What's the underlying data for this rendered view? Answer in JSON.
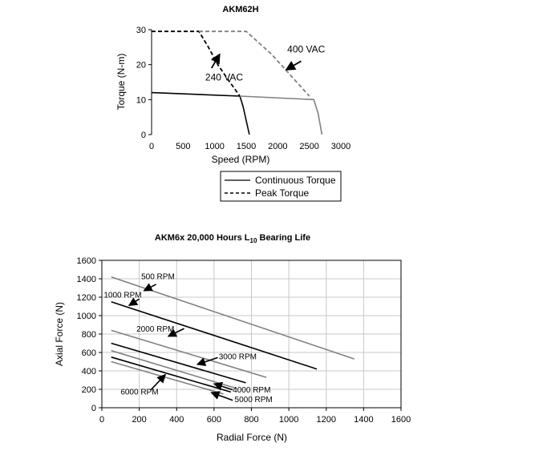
{
  "chart_data": [
    {
      "type": "line",
      "title": "AKM62H",
      "xlabel": "Speed (RPM)",
      "ylabel": "Torque (N-m)",
      "xlim": [
        0,
        3000
      ],
      "ylim": [
        0,
        30
      ],
      "xticks": [
        "0",
        "500",
        "1000",
        "1500",
        "2000",
        "2500",
        "3000"
      ],
      "yticks": [
        "0",
        "10",
        "20",
        "30"
      ],
      "grid": false,
      "legend_position": "below",
      "legend": [
        {
          "label": "Continuous Torque",
          "style": "solid"
        },
        {
          "label": "Peak Torque",
          "style": "dashed"
        }
      ],
      "series": [
        {
          "voltage": "240 VAC",
          "kind": "continuous",
          "color": "#000000",
          "dashed": false,
          "x": [
            0,
            1400,
            1450,
            1500,
            1550
          ],
          "y": [
            12,
            11,
            8,
            4,
            0
          ]
        },
        {
          "voltage": "240 VAC",
          "kind": "peak",
          "color": "#000000",
          "dashed": true,
          "x": [
            0,
            750,
            900,
            1050,
            1200,
            1320,
            1400
          ],
          "y": [
            29.5,
            29.5,
            25,
            20,
            16,
            13,
            11
          ]
        },
        {
          "voltage": "400 VAC",
          "kind": "continuous",
          "color": "#808080",
          "dashed": false,
          "x": [
            1400,
            2570,
            2640,
            2700
          ],
          "y": [
            11,
            10,
            6,
            0
          ]
        },
        {
          "voltage": "400 VAC",
          "kind": "peak",
          "color": "#808080",
          "dashed": true,
          "x": [
            750,
            1500,
            1900,
            2100,
            2300,
            2500
          ],
          "y": [
            29.5,
            29.5,
            23,
            19,
            15,
            11
          ]
        }
      ],
      "annotations": [
        {
          "text": "240 VAC",
          "x": 1150,
          "y": 15.5,
          "arrow_to": [
            1080,
            23
          ],
          "arrow_from": [
            950,
            19
          ]
        },
        {
          "text": "400 VAC",
          "x": 2450,
          "y": 23.5,
          "arrow_to": [
            2130,
            18.5
          ],
          "arrow_from": [
            2370,
            21
          ]
        }
      ]
    },
    {
      "type": "line",
      "title_main": "AKM6x 20,000 Hours L",
      "title_sub": "10",
      "title_end": " Bearing Life",
      "xlabel": "Radial Force (N)",
      "ylabel": "Axial Force (N)",
      "xlim": [
        0,
        1600
      ],
      "ylim": [
        0,
        1600
      ],
      "xticks": [
        "0",
        "200",
        "400",
        "600",
        "800",
        "1000",
        "1200",
        "1400",
        "1600"
      ],
      "yticks": [
        "0",
        "200",
        "400",
        "600",
        "800",
        "1000",
        "1200",
        "1400",
        "1600"
      ],
      "grid": true,
      "series": [
        {
          "name": "500 RPM",
          "color": "#808080",
          "x": [
            50,
            1350
          ],
          "y": [
            1420,
            530
          ]
        },
        {
          "name": "1000 RPM",
          "color": "#000000",
          "x": [
            50,
            1150
          ],
          "y": [
            1150,
            420
          ]
        },
        {
          "name": "2000 RPM",
          "color": "#808080",
          "x": [
            50,
            880
          ],
          "y": [
            840,
            330
          ]
        },
        {
          "name": "3000 RPM",
          "color": "#000000",
          "x": [
            50,
            770
          ],
          "y": [
            700,
            270
          ]
        },
        {
          "name": "4000 RPM",
          "color": "#808080",
          "x": [
            50,
            720
          ],
          "y": [
            620,
            210
          ]
        },
        {
          "name": "5000 RPM",
          "color": "#000000",
          "x": [
            50,
            690
          ],
          "y": [
            550,
            170
          ]
        },
        {
          "name": "6000 RPM",
          "color": "#808080",
          "x": [
            50,
            650
          ],
          "y": [
            500,
            150
          ]
        }
      ],
      "annotations": [
        {
          "text": "500 RPM",
          "x": 300,
          "y": 1395,
          "anchor": "middle"
        },
        {
          "text": "1000 RPM",
          "x": 10,
          "y": 1195,
          "anchor": "start"
        },
        {
          "text": "2000 RPM",
          "x": 185,
          "y": 825,
          "anchor": "start"
        },
        {
          "text": "3000 RPM",
          "x": 625,
          "y": 525,
          "anchor": "start"
        },
        {
          "text": "4000 RPM",
          "x": 700,
          "y": 165,
          "anchor": "start"
        },
        {
          "text": "5000 RPM",
          "x": 710,
          "y": 60,
          "anchor": "start"
        },
        {
          "text": "6000 RPM",
          "x": 100,
          "y": 145,
          "anchor": "start"
        }
      ],
      "arrows": [
        {
          "from": [
            290,
            1340
          ],
          "to": [
            225,
            1270
          ]
        },
        {
          "from": [
            200,
            1180
          ],
          "to": [
            145,
            1110
          ]
        },
        {
          "from": [
            440,
            860
          ],
          "to": [
            355,
            775
          ]
        },
        {
          "from": [
            620,
            545
          ],
          "to": [
            510,
            470
          ]
        },
        {
          "from": [
            700,
            195
          ],
          "to": [
            600,
            260
          ]
        },
        {
          "from": [
            700,
            80
          ],
          "to": [
            585,
            165
          ]
        },
        {
          "from": [
            260,
            190
          ],
          "to": [
            340,
            360
          ]
        }
      ]
    }
  ]
}
